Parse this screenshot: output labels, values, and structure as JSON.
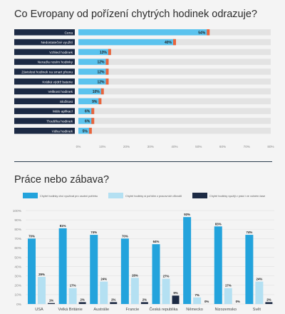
{
  "section1": {
    "title": "Co Evropany od pořízení chytrých hodinek odrazuje?"
  },
  "section2": {
    "title": "Práce nebo zábava?"
  },
  "colors": {
    "navy": "#1c2a44",
    "lightblue": "#5bc3ee",
    "orange": "#e8643c",
    "track": "#e3e3e3",
    "blue2": "#23a3dc",
    "pale": "#b4e0f2"
  },
  "chart_data": [
    {
      "type": "bar",
      "orientation": "horizontal",
      "categories": [
        "Cena",
        "Nedostatečné využití",
        "Vzhled hodinek",
        "Nerad/a nosím hodinky",
        "Závislost hodinek na smart phonu",
        "Krátká výdrž baterie",
        "Velikost hodinek",
        "Složitost",
        "Málo aplikací",
        "Tloušťka hodinek",
        "Váha hodinek"
      ],
      "values": [
        54,
        40,
        13,
        12,
        12,
        12,
        10,
        9,
        6,
        6,
        5
      ],
      "labels": [
        "54%",
        "40%",
        "13%",
        "12%",
        "12%",
        "12%",
        "10%",
        "9%",
        "6%",
        "6%",
        "5%"
      ],
      "xticks": [
        "0%",
        "10%",
        "20%",
        "30%",
        "40%",
        "50%",
        "60%",
        "70%",
        "80%"
      ],
      "xlim": [
        0,
        80
      ]
    },
    {
      "type": "bar",
      "categories": [
        "USA",
        "Velká Británie",
        "Austrálie",
        "Francie",
        "Česká republika",
        "Německo",
        "Nizozemsko",
        "Svět"
      ],
      "series": [
        {
          "name": "Chytré hodinky chci využívat pro osobní potřebu",
          "values": [
            70,
            81,
            74,
            70,
            64,
            93,
            83,
            74
          ],
          "labels": [
            "70%",
            "81%",
            "74%",
            "70%",
            "64%",
            "93%",
            "83%",
            "74%"
          ]
        },
        {
          "name": "Chytré hodinky si pořídím z pracovních důvodů",
          "values": [
            29,
            17,
            24,
            28,
            27,
            7,
            17,
            24
          ],
          "labels": [
            "29%",
            "17%",
            "24%",
            "28%",
            "27%",
            "7%",
            "17%",
            "24%"
          ]
        },
        {
          "name": "Chytré hodinky využiji v práci i ve volném čase",
          "values": [
            1,
            2,
            2,
            2,
            9,
            0,
            0,
            2
          ],
          "labels": [
            "1%",
            "2%",
            "2%",
            "2%",
            "9%",
            "0%",
            "0%",
            "2%"
          ]
        }
      ],
      "yticks": [
        "100%",
        "90%",
        "80%",
        "70%",
        "60%",
        "50%",
        "40%",
        "30%",
        "20%",
        "10%",
        "0%"
      ],
      "ylim": [
        0,
        100
      ]
    }
  ]
}
